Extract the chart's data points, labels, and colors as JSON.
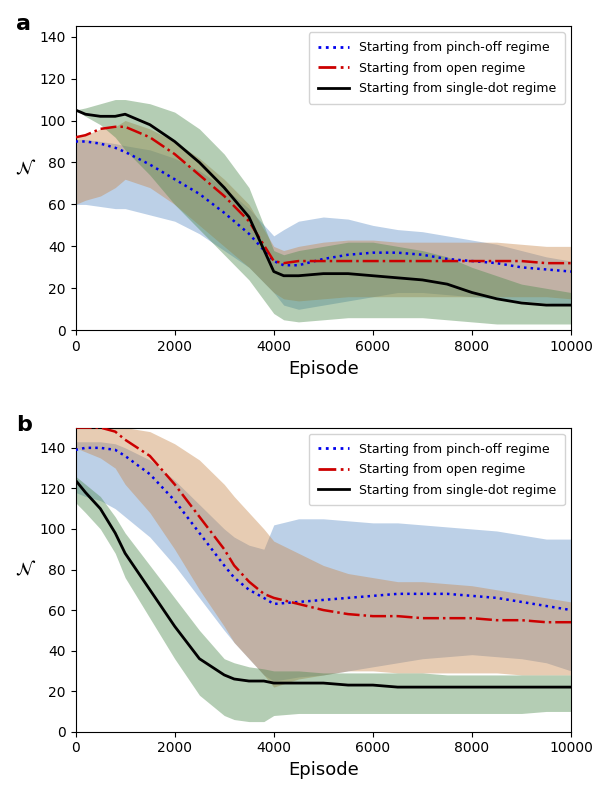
{
  "title_a": "a",
  "title_b": "b",
  "xlabel": "Episode",
  "ylabel": "N",
  "xlim": [
    0,
    10000
  ],
  "ylim_a": [
    0,
    145
  ],
  "ylim_b": [
    0,
    150
  ],
  "yticks_a": [
    0,
    20,
    40,
    60,
    80,
    100,
    120,
    140
  ],
  "yticks_b": [
    0,
    20,
    40,
    60,
    80,
    100,
    120,
    140
  ],
  "xticks": [
    0,
    2000,
    4000,
    6000,
    8000,
    10000
  ],
  "legend_labels": [
    "Starting from pinch-off regime",
    "Starting from open regime",
    "Starting from single-dot regime"
  ],
  "blue_color": "#0000ee",
  "red_color": "#cc0000",
  "black_color": "#000000",
  "blue_fill": "#6090c8",
  "red_fill": "#c8874a",
  "green_fill": "#4d8a4d",
  "episodes_a": [
    0,
    200,
    500,
    800,
    1000,
    1500,
    2000,
    2500,
    3000,
    3500,
    4000,
    4200,
    4500,
    5000,
    5500,
    6000,
    6500,
    7000,
    7500,
    8000,
    8500,
    9000,
    9500,
    10000
  ],
  "blue_mean_a": [
    90,
    90,
    89,
    87,
    85,
    79,
    72,
    65,
    56,
    46,
    33,
    31,
    31,
    34,
    36,
    37,
    37,
    36,
    34,
    33,
    32,
    30,
    29,
    28
  ],
  "blue_upper_a": [
    91,
    91,
    90,
    89,
    88,
    86,
    82,
    76,
    68,
    58,
    45,
    48,
    52,
    54,
    53,
    50,
    48,
    47,
    45,
    43,
    41,
    38,
    35,
    33
  ],
  "blue_lower_a": [
    60,
    60,
    59,
    58,
    58,
    55,
    52,
    46,
    38,
    30,
    18,
    12,
    10,
    12,
    14,
    16,
    18,
    18,
    17,
    16,
    15,
    14,
    13,
    12
  ],
  "red_mean_a": [
    92,
    93,
    96,
    97,
    97,
    92,
    84,
    74,
    64,
    52,
    33,
    32,
    33,
    33,
    33,
    33,
    33,
    33,
    33,
    33,
    33,
    33,
    32,
    32
  ],
  "red_upper_a": [
    92,
    93,
    96,
    97,
    100,
    96,
    90,
    82,
    72,
    60,
    40,
    38,
    40,
    42,
    43,
    43,
    42,
    42,
    42,
    42,
    42,
    41,
    40,
    40
  ],
  "red_lower_a": [
    60,
    62,
    64,
    68,
    72,
    68,
    60,
    50,
    40,
    30,
    18,
    15,
    14,
    15,
    16,
    16,
    16,
    16,
    16,
    16,
    16,
    16,
    16,
    15
  ],
  "black_mean_a": [
    105,
    103,
    102,
    102,
    103,
    98,
    90,
    80,
    68,
    54,
    28,
    26,
    26,
    27,
    27,
    26,
    25,
    24,
    22,
    18,
    15,
    13,
    12,
    12
  ],
  "black_upper_a": [
    105,
    106,
    108,
    110,
    110,
    108,
    104,
    96,
    84,
    68,
    38,
    36,
    38,
    40,
    42,
    42,
    40,
    38,
    35,
    30,
    26,
    22,
    20,
    18
  ],
  "black_lower_a": [
    105,
    102,
    98,
    92,
    86,
    74,
    60,
    48,
    36,
    24,
    8,
    5,
    4,
    5,
    6,
    6,
    6,
    6,
    5,
    4,
    3,
    3,
    3,
    3
  ],
  "episodes_b": [
    0,
    200,
    500,
    800,
    1000,
    1500,
    2000,
    2500,
    3000,
    3200,
    3500,
    3800,
    4000,
    4500,
    5000,
    5500,
    6000,
    6500,
    7000,
    7500,
    8000,
    8500,
    9000,
    9500,
    10000
  ],
  "blue_mean_b": [
    139,
    140,
    140,
    139,
    136,
    127,
    114,
    98,
    82,
    76,
    70,
    66,
    63,
    64,
    65,
    66,
    67,
    68,
    68,
    68,
    67,
    66,
    64,
    62,
    60
  ],
  "blue_upper_b": [
    143,
    143,
    143,
    142,
    140,
    134,
    124,
    112,
    100,
    96,
    92,
    90,
    102,
    105,
    105,
    104,
    103,
    103,
    102,
    101,
    100,
    99,
    97,
    95,
    95
  ],
  "blue_lower_b": [
    118,
    116,
    114,
    110,
    106,
    96,
    82,
    66,
    50,
    44,
    36,
    28,
    25,
    27,
    28,
    30,
    32,
    34,
    36,
    37,
    38,
    37,
    36,
    34,
    30
  ],
  "red_mean_b": [
    150,
    150,
    150,
    148,
    144,
    136,
    122,
    106,
    90,
    82,
    74,
    68,
    66,
    63,
    60,
    58,
    57,
    57,
    56,
    56,
    56,
    55,
    55,
    54,
    54
  ],
  "red_upper_b": [
    152,
    152,
    152,
    151,
    150,
    148,
    142,
    134,
    122,
    116,
    108,
    100,
    94,
    88,
    82,
    78,
    76,
    74,
    74,
    73,
    72,
    70,
    68,
    66,
    64
  ],
  "red_lower_b": [
    140,
    138,
    135,
    130,
    122,
    108,
    90,
    70,
    52,
    44,
    36,
    28,
    22,
    26,
    28,
    30,
    30,
    29,
    29,
    29,
    29,
    29,
    28,
    28,
    28
  ],
  "black_mean_b": [
    124,
    118,
    110,
    98,
    88,
    70,
    52,
    36,
    28,
    26,
    25,
    25,
    24,
    24,
    24,
    23,
    23,
    22,
    22,
    22,
    22,
    22,
    22,
    22,
    22
  ],
  "black_upper_b": [
    126,
    122,
    116,
    106,
    98,
    82,
    66,
    50,
    36,
    34,
    32,
    31,
    30,
    30,
    29,
    29,
    29,
    29,
    29,
    28,
    28,
    28,
    28,
    28,
    28
  ],
  "black_lower_b": [
    113,
    108,
    100,
    88,
    76,
    56,
    36,
    18,
    8,
    6,
    5,
    5,
    8,
    9,
    9,
    9,
    9,
    9,
    9,
    9,
    9,
    9,
    9,
    10,
    10
  ]
}
